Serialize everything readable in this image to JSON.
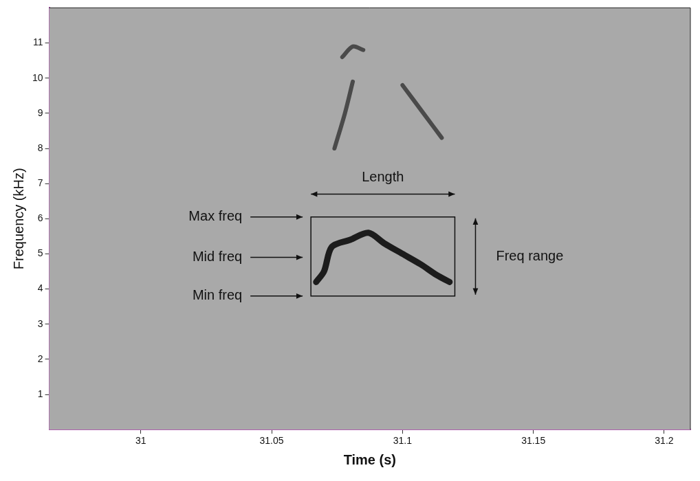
{
  "chart_data": {
    "type": "line",
    "xlabel": "Time (s)",
    "ylabel": "Frequency (kHz)",
    "xlim": [
      30.965,
      31.21
    ],
    "xticks": [
      31,
      31.05,
      31.1,
      31.15,
      31.2
    ],
    "ylim": [
      0,
      12
    ],
    "yticks": [
      1,
      2,
      3,
      4,
      5,
      6,
      7,
      8,
      9,
      10,
      11
    ],
    "grid": false,
    "series": [
      {
        "color": "#1c1c1c",
        "x": [
          31.067,
          31.07,
          31.073,
          31.08,
          31.087,
          31.093,
          31.1,
          31.107,
          31.113,
          31.118
        ],
        "values": [
          4.2,
          4.5,
          5.2,
          5.4,
          5.6,
          5.3,
          5.0,
          4.7,
          4.4,
          4.2
        ]
      },
      {
        "color": "#4a4a4a",
        "x": [
          31.074,
          31.078,
          31.081
        ],
        "values": [
          8.0,
          9.0,
          9.9
        ]
      },
      {
        "color": "#4a4a4a",
        "x": [
          31.077,
          31.081,
          31.085
        ],
        "values": [
          10.6,
          10.9,
          10.8
        ]
      },
      {
        "color": "#4a4a4a",
        "x": [
          31.1,
          31.108,
          31.115
        ],
        "values": [
          9.8,
          9.0,
          8.3
        ]
      }
    ],
    "box": {
      "x": [
        31.065,
        31.12
      ],
      "y": [
        3.8,
        6.05
      ],
      "width_label": "Length",
      "width_label_y": 6.7,
      "height_label": "Freq range"
    },
    "annotations": [
      {
        "text": "Max freq",
        "y": 6.05
      },
      {
        "text": "Mid freq",
        "y": 4.9
      },
      {
        "text": "Min freq",
        "y": 3.8
      }
    ]
  }
}
